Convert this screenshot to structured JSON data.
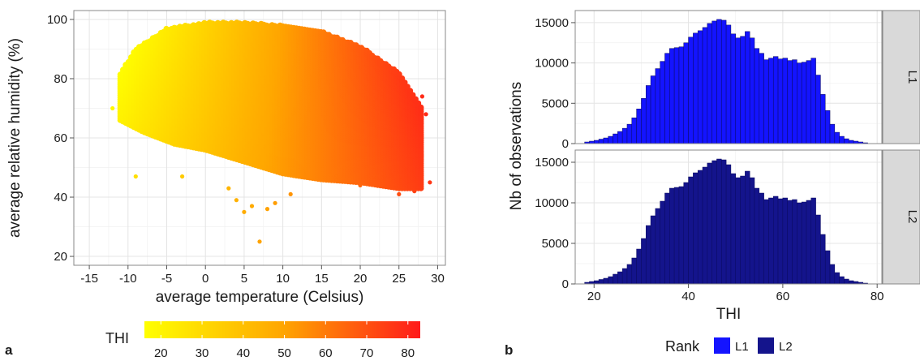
{
  "chart_data": [
    {
      "panel_letter": "a",
      "type": "scatter",
      "xlabel": "average temperature (Celsius)",
      "ylabel": "average relative humidity (%)",
      "xlim": [
        -17,
        31
      ],
      "ylim": [
        17,
        103
      ],
      "x_ticks": [
        "-15",
        "-10",
        "-5",
        "0",
        "5",
        "10",
        "15",
        "20",
        "25",
        "30"
      ],
      "y_ticks": [
        "20",
        "40",
        "60",
        "80",
        "100"
      ],
      "grid": true,
      "color_scale": {
        "title": "THI",
        "min": 16,
        "max": 83,
        "ticks": [
          "20",
          "30",
          "40",
          "50",
          "60",
          "70",
          "80"
        ],
        "low_color": "#ffff00",
        "high_color": "#ff1a1a"
      },
      "point_cloud": {
        "description_note": "dense cloud of daily observations",
        "upper_edge": [
          [
            -11,
            82
          ],
          [
            -9,
            90
          ],
          [
            -5,
            97
          ],
          [
            0,
            99
          ],
          [
            5,
            99
          ],
          [
            10,
            98
          ],
          [
            15,
            96
          ],
          [
            20,
            91
          ],
          [
            25,
            82
          ],
          [
            28,
            70
          ]
        ],
        "lower_edge": [
          [
            -11,
            66
          ],
          [
            -8,
            62
          ],
          [
            -4,
            58
          ],
          [
            0,
            56
          ],
          [
            5,
            52
          ],
          [
            10,
            48
          ],
          [
            15,
            46
          ],
          [
            20,
            45
          ],
          [
            25,
            43
          ],
          [
            28,
            43
          ]
        ]
      },
      "outlier_points": [
        [
          -12,
          70
        ],
        [
          -9,
          47
        ],
        [
          -7,
          62
        ],
        [
          -3,
          47
        ],
        [
          3,
          43
        ],
        [
          4,
          39
        ],
        [
          5,
          35
        ],
        [
          6,
          37
        ],
        [
          7,
          25
        ],
        [
          8,
          36
        ],
        [
          9,
          38
        ],
        [
          11,
          41
        ],
        [
          20,
          44
        ],
        [
          25,
          41
        ],
        [
          27,
          42
        ],
        [
          29,
          45
        ],
        [
          28.5,
          68
        ],
        [
          28,
          74
        ]
      ]
    },
    {
      "panel_letter": "b",
      "type": "bar",
      "subtype": "histogram_faceted",
      "xlabel": "THI",
      "ylabel": "Nb of observations",
      "xlim": [
        16,
        81
      ],
      "ylim": [
        0,
        16500
      ],
      "x_ticks": [
        "20",
        "40",
        "60",
        "80"
      ],
      "y_ticks": [
        "0",
        "5000",
        "10000",
        "15000"
      ],
      "grid": true,
      "bin_start": 18,
      "bin_width": 1,
      "legend": {
        "title": "Rank",
        "entries": [
          {
            "label": "L1",
            "color": "#1414ff"
          },
          {
            "label": "L2",
            "color": "#14148c"
          }
        ]
      },
      "series": [
        {
          "name": "L1",
          "color": "#1414ff",
          "values": [
            200,
            300,
            400,
            550,
            700,
            900,
            1200,
            1500,
            1900,
            2400,
            3200,
            4300,
            5600,
            7200,
            8400,
            9300,
            10200,
            11200,
            11800,
            11900,
            12000,
            12500,
            13200,
            13700,
            14000,
            14400,
            14900,
            15200,
            15400,
            15300,
            14700,
            13600,
            13100,
            13300,
            13900,
            13100,
            11800,
            11200,
            10400,
            10600,
            10800,
            10500,
            10600,
            10300,
            10400,
            10000,
            10100,
            10300,
            10600,
            8500,
            6100,
            4100,
            2400,
            1400,
            900,
            600,
            400,
            300,
            200,
            100
          ]
        },
        {
          "name": "L2",
          "color": "#14148c",
          "values": [
            200,
            300,
            400,
            550,
            700,
            900,
            1200,
            1500,
            1900,
            2400,
            3200,
            4300,
            5600,
            7200,
            8400,
            9300,
            10200,
            11200,
            11800,
            11900,
            12000,
            12500,
            13200,
            13700,
            14000,
            14400,
            14900,
            15200,
            15400,
            15300,
            14700,
            13600,
            13100,
            13300,
            13900,
            13100,
            11800,
            11200,
            10400,
            10600,
            10800,
            10500,
            10600,
            10300,
            10400,
            10000,
            10100,
            10300,
            10600,
            8500,
            6100,
            4100,
            2400,
            1400,
            900,
            600,
            400,
            300,
            200,
            100
          ]
        }
      ]
    }
  ]
}
